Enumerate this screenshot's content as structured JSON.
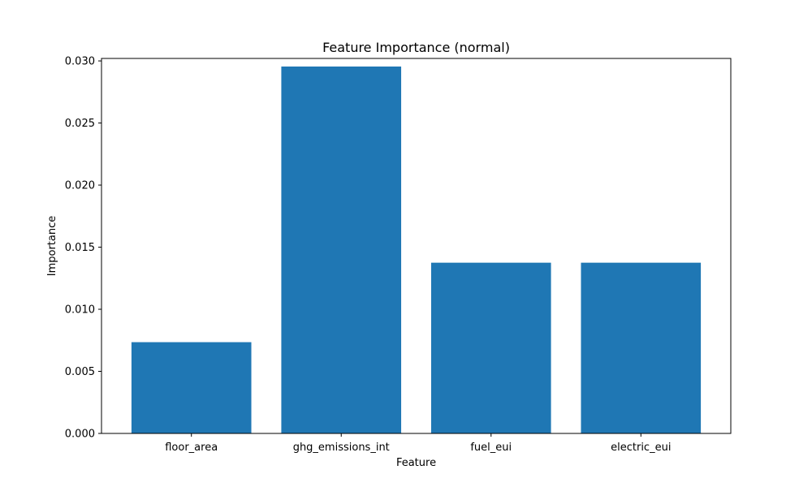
{
  "chart_data": {
    "type": "bar",
    "title": "Feature Importance (normal)",
    "xlabel": "Feature",
    "ylabel": "Importance",
    "categories": [
      "floor_area",
      "ghg_emissions_int",
      "fuel_eui",
      "electric_eui"
    ],
    "values": [
      0.00735,
      0.02955,
      0.01375,
      0.01375
    ],
    "ylim": [
      0,
      0.0302
    ],
    "yticks": [
      0.0,
      0.005,
      0.01,
      0.015,
      0.02,
      0.025,
      0.03
    ],
    "ytick_labels": [
      "0.000",
      "0.005",
      "0.010",
      "0.015",
      "0.020",
      "0.025",
      "0.030"
    ],
    "bar_color": "#1f77b4",
    "grid": false,
    "legend": false
  }
}
